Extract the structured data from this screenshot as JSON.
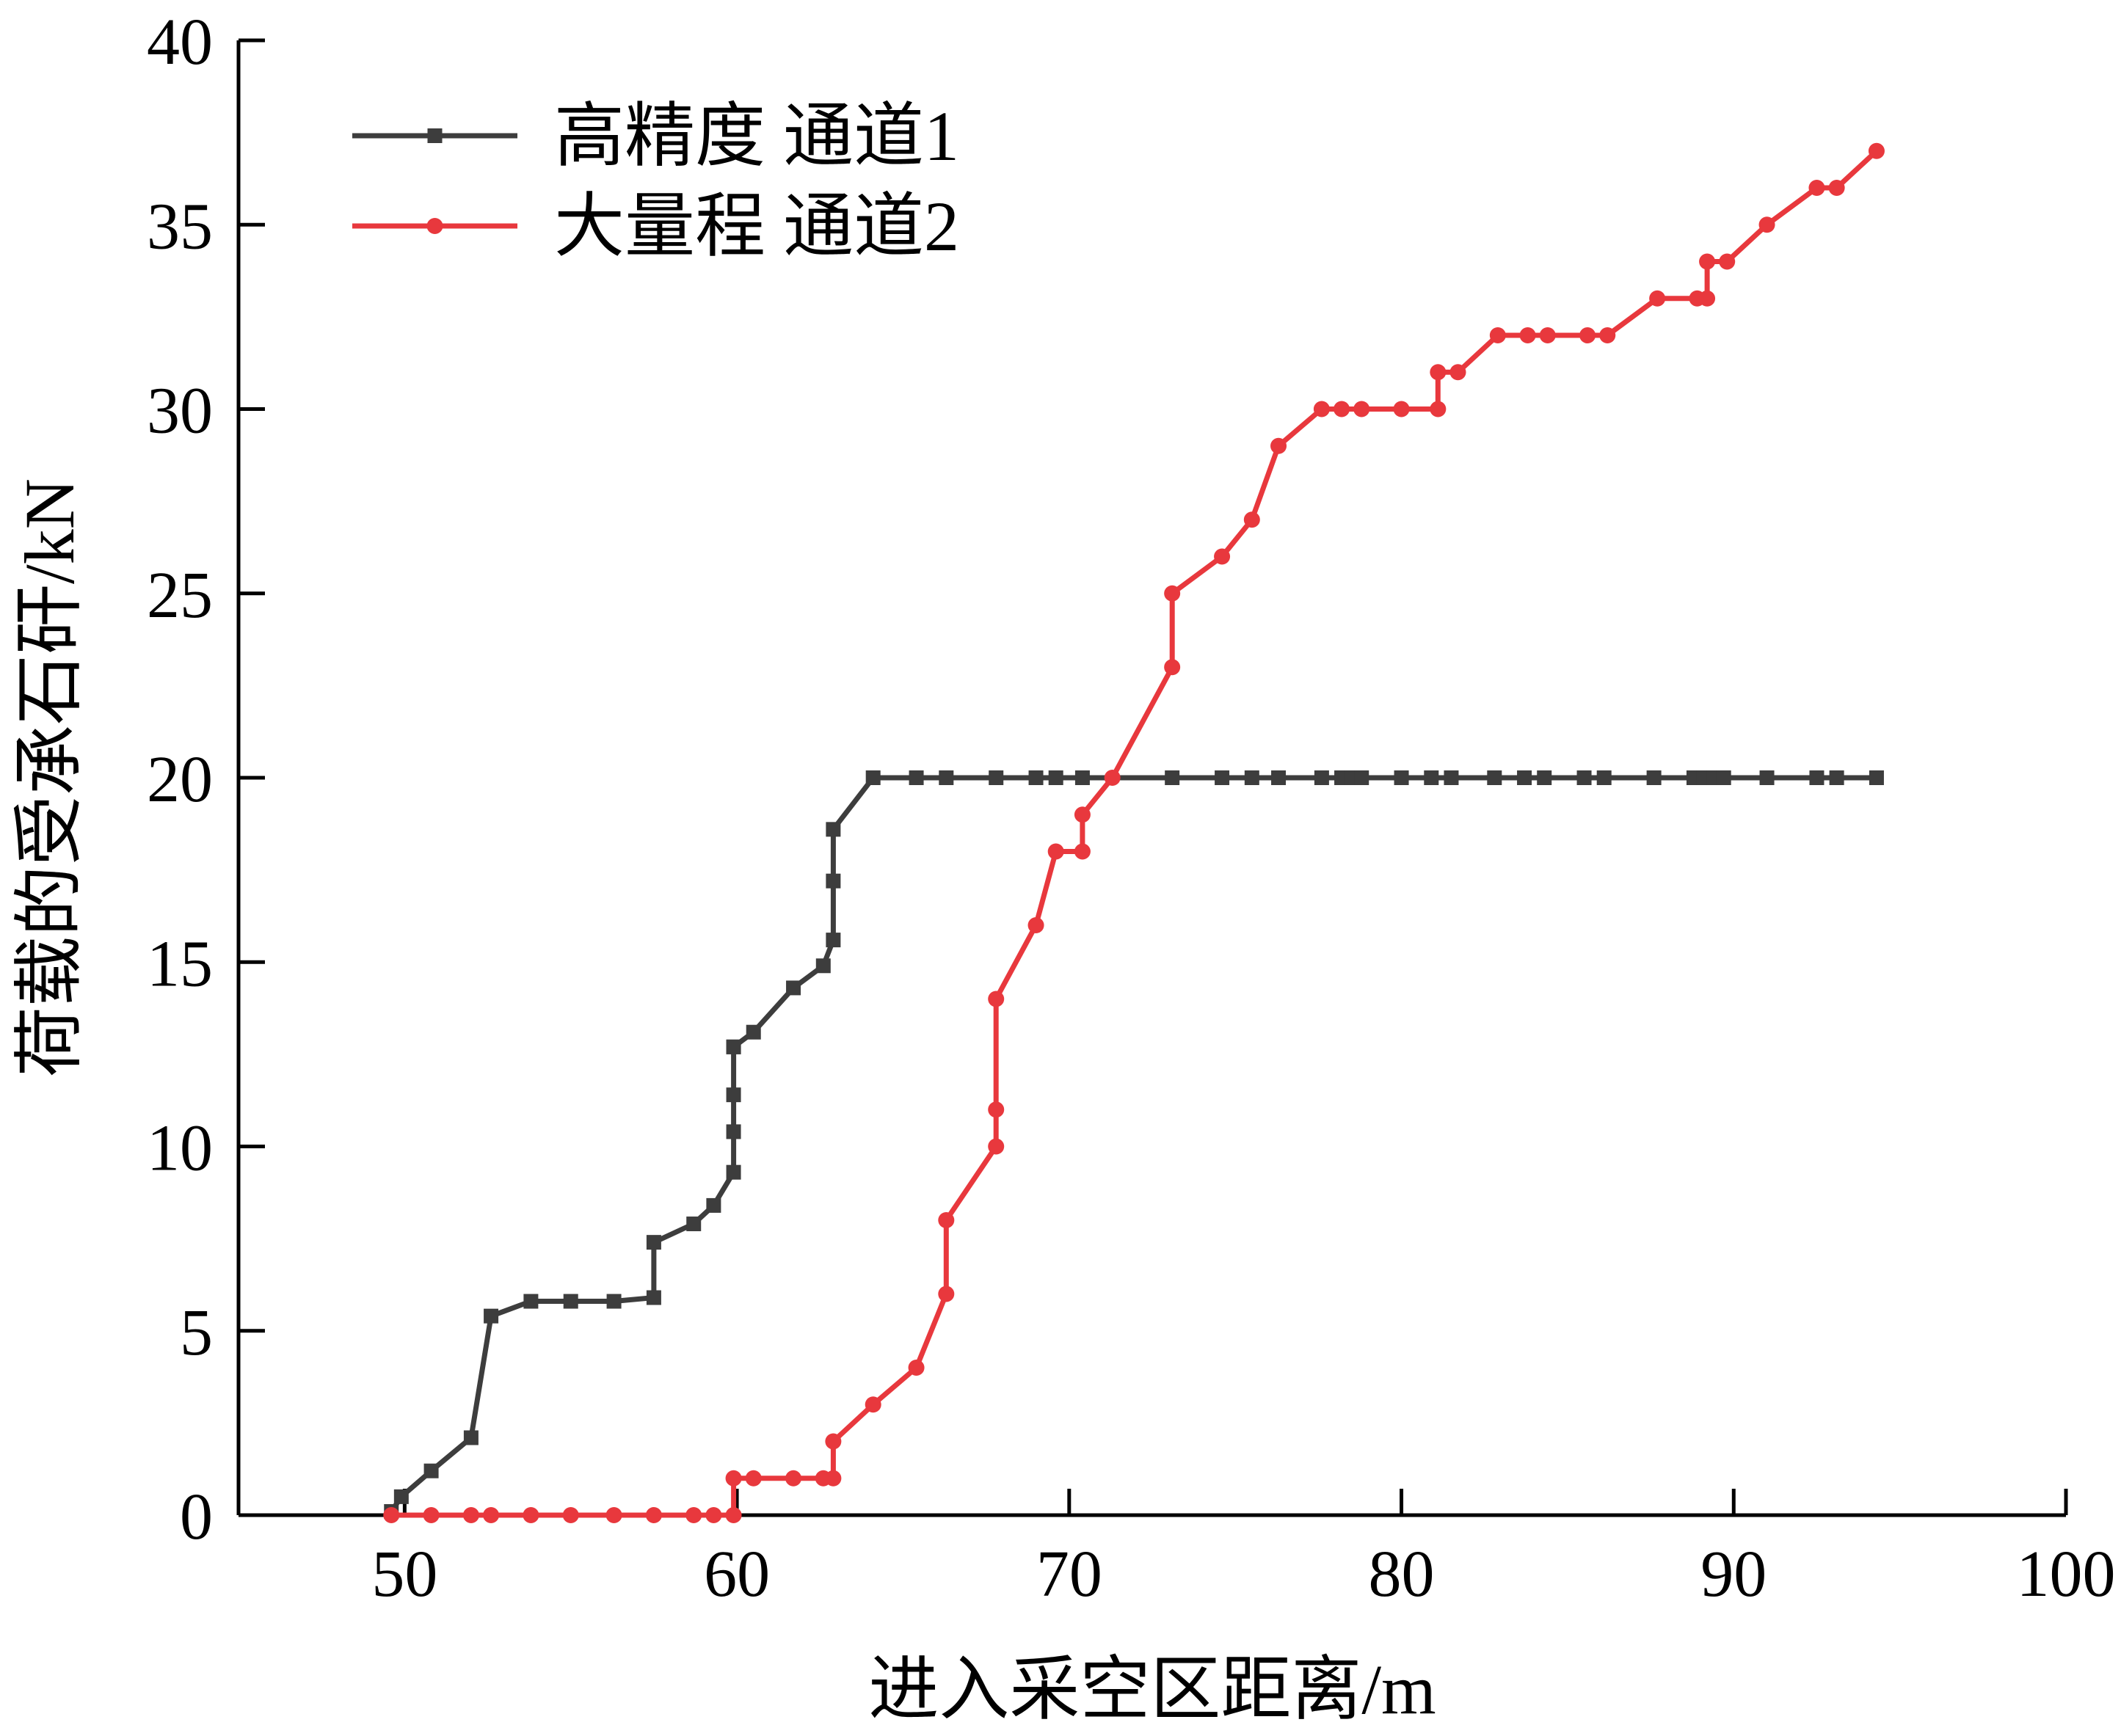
{
  "chart_data": {
    "type": "line",
    "title": "",
    "xlabel": "进入采空区距离/m",
    "ylabel": "荷载的受承石矸/kN",
    "xlim": [
      45,
      100
    ],
    "ylim": [
      0,
      40
    ],
    "xticks": [
      50,
      60,
      70,
      80,
      90,
      100
    ],
    "yticks": [
      0,
      5,
      10,
      15,
      20,
      25,
      30,
      35,
      40
    ],
    "legend_position": "top-left",
    "series": [
      {
        "name": "高精度 通道1",
        "color": "#3d3d3d",
        "marker": "square",
        "x": [
          49.6,
          49.9,
          50.8,
          52.0,
          52.6,
          53.8,
          55.0,
          56.3,
          57.5,
          57.5,
          58.7,
          59.3,
          59.9,
          59.9,
          59.9,
          59.9,
          59.9,
          60.5,
          61.7,
          62.6,
          62.9,
          62.9,
          62.9,
          64.1,
          65.4,
          66.3,
          67.8,
          69.0,
          69.6,
          70.4,
          73.1,
          74.6,
          75.5,
          76.3,
          77.6,
          78.2,
          78.5,
          78.8,
          80.0,
          80.9,
          81.5,
          82.8,
          83.7,
          84.3,
          85.5,
          86.1,
          87.6,
          88.8,
          89.1,
          89.4,
          89.7,
          91.0,
          92.5,
          93.1,
          94.3
        ],
        "y": [
          0.1,
          0.5,
          1.2,
          2.1,
          5.4,
          5.8,
          5.8,
          5.8,
          5.9,
          7.4,
          7.9,
          8.4,
          9.3,
          10.4,
          11.4,
          12.7,
          12.7,
          13.1,
          14.3,
          14.9,
          15.6,
          17.2,
          18.6,
          20,
          20,
          20,
          20,
          20,
          20,
          20,
          20,
          20,
          20,
          20,
          20,
          20,
          20,
          20,
          20,
          20,
          20,
          20,
          20,
          20,
          20,
          20,
          20,
          20,
          20,
          20,
          20,
          20,
          20,
          20,
          20
        ]
      },
      {
        "name": "大量程 通道2",
        "color": "#e8383d",
        "marker": "circle",
        "x": [
          49.6,
          50.8,
          52.0,
          52.6,
          53.8,
          55.0,
          56.3,
          57.5,
          58.7,
          59.3,
          59.9,
          59.9,
          60.5,
          61.7,
          62.6,
          62.9,
          62.9,
          64.1,
          65.4,
          66.3,
          66.3,
          67.8,
          67.8,
          67.8,
          69.0,
          69.6,
          70.4,
          70.4,
          71.3,
          73.1,
          73.1,
          74.6,
          75.5,
          76.3,
          77.6,
          78.2,
          78.8,
          80.0,
          81.1,
          81.1,
          81.7,
          82.9,
          83.8,
          84.4,
          85.6,
          86.2,
          87.7,
          88.9,
          89.2,
          89.2,
          89.8,
          91.0,
          92.5,
          93.1,
          94.3
        ],
        "y": [
          0,
          0,
          0,
          0,
          0,
          0,
          0,
          0,
          0,
          0,
          0,
          1,
          1,
          1,
          1,
          1,
          2,
          3,
          4,
          6,
          8,
          10,
          11,
          14,
          16,
          18,
          18,
          19,
          20,
          23,
          25,
          26,
          27,
          29,
          30,
          30,
          30,
          30,
          30,
          31,
          31,
          32,
          32,
          32,
          32,
          32,
          33,
          33,
          33,
          34,
          34,
          35,
          36,
          36,
          37
        ]
      }
    ]
  }
}
